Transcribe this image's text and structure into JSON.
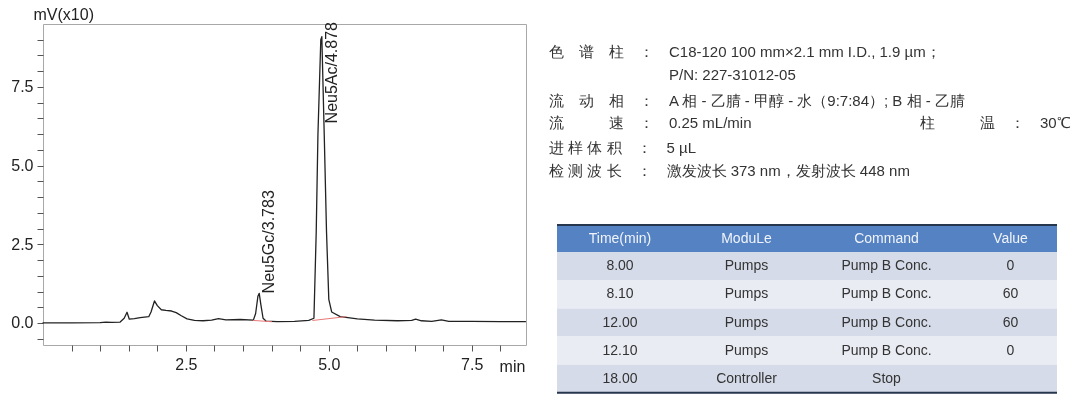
{
  "chart_data": [
    {
      "type": "line",
      "xlabel": "min",
      "ylabel": "mV(x10)",
      "xlim": [
        0,
        8.45
      ],
      "ylim": [
        -0.7,
        9.5
      ],
      "xticks": [
        {
          "value": 0.5,
          "label": null
        },
        {
          "value": 1,
          "label": null
        },
        {
          "value": 1.5,
          "label": null
        },
        {
          "value": 2,
          "label": null
        },
        2.5,
        {
          "value": 3,
          "label": null
        },
        {
          "value": 3.5,
          "label": null
        },
        {
          "value": 4,
          "label": null
        },
        {
          "value": 4.5,
          "label": null
        },
        {
          "value": 5,
          "label": "5.0"
        },
        {
          "value": 5.5,
          "label": null
        },
        {
          "value": 6,
          "label": null
        },
        {
          "value": 6.5,
          "label": null
        },
        {
          "value": 7,
          "label": null
        },
        7.5,
        {
          "value": 8,
          "label": null
        }
      ],
      "yticks": [
        {
          "value": -0.5,
          "label": null
        },
        {
          "value": 0,
          "label": "0.0"
        },
        {
          "value": 0.5,
          "label": null
        },
        {
          "value": 1,
          "label": null
        },
        {
          "value": 1.5,
          "label": null
        },
        {
          "value": 2,
          "label": null
        },
        2.5,
        {
          "value": 3,
          "label": null
        },
        {
          "value": 3.5,
          "label": null
        },
        {
          "value": 4,
          "label": null
        },
        {
          "value": 4.5,
          "label": null
        },
        {
          "value": 5,
          "label": "5.0"
        },
        {
          "value": 5.5,
          "label": null
        },
        {
          "value": 6,
          "label": null
        },
        {
          "value": 6.5,
          "label": null
        },
        {
          "value": 7,
          "label": null
        },
        7.5,
        {
          "value": 8,
          "label": null
        },
        {
          "value": 8.5,
          "label": null
        },
        {
          "value": 9,
          "label": null
        }
      ],
      "series": [
        {
          "color": "#222222",
          "x": [
            0,
            0.5,
            1.0,
            1.1,
            1.2,
            1.35,
            1.42,
            1.47,
            1.51,
            1.6,
            1.7,
            1.85,
            1.89,
            1.95,
            2.0,
            2.07,
            2.15,
            2.25,
            2.33,
            2.42,
            2.52,
            2.65,
            2.8,
            2.95,
            3.07,
            3.2,
            3.45,
            3.68,
            3.72,
            3.76,
            3.783,
            3.81,
            3.85,
            3.9,
            4.1,
            4.4,
            4.65,
            4.74,
            4.78,
            4.81,
            4.86,
            4.878,
            4.92,
            4.96,
            5.0,
            5.05,
            5.2,
            5.5,
            5.8,
            6.2,
            6.45,
            6.52,
            6.62,
            6.8,
            6.97,
            7.1,
            7.5,
            8.0,
            8.44
          ],
          "values": [
            0,
            0,
            0.01,
            0.03,
            0.02,
            0.03,
            0.15,
            0.34,
            0.12,
            0.14,
            0.17,
            0.2,
            0.35,
            0.7,
            0.55,
            0.42,
            0.4,
            0.38,
            0.33,
            0.23,
            0.13,
            0.08,
            0.07,
            0.09,
            0.14,
            0.1,
            0.11,
            0.09,
            0.3,
            0.85,
            0.94,
            0.6,
            0.15,
            0.06,
            0.04,
            0.05,
            0.08,
            0.15,
            2.9,
            6.0,
            9.0,
            9.1,
            6.0,
            2.9,
            0.75,
            0.35,
            0.2,
            0.13,
            0.09,
            0.07,
            0.08,
            0.12,
            0.07,
            0.05,
            0.1,
            0.05,
            0.05,
            0.04,
            0.04
          ]
        },
        {
          "color": "#e87878",
          "x": [
            3.68,
            4.0
          ],
          "values": [
            0.08,
            0.04
          ]
        },
        {
          "color": "#e87878",
          "x": [
            4.72,
            5.3
          ],
          "values": [
            0.08,
            0.2
          ]
        }
      ],
      "annotations": [
        {
          "text": "Neu5Gc/3.783",
          "x": 3.783,
          "y": 0.94
        },
        {
          "text": "Neu5Ac/4.878",
          "x": 4.878,
          "y": 9.1
        }
      ]
    },
    {
      "type": "other",
      "annotations": [
        "色　谱　柱　：　C18-120 100 mm×2.1 mm I.D., 1.9 µm；",
        "P/N: 227-31012-05",
        "流　动　相　：　A 相 - 乙腈 - 甲醇 - 水（9:7:84）; B 相 - 乙腈",
        "流　　　速　：　0.25 mL/min",
        "柱　　　温　：　30℃",
        "进 样 体 积　：　5 µL",
        "检 测 波 长　：　激发波长 373 nm，发射波长 448 nm"
      ]
    },
    {
      "type": "other",
      "categories": [
        "Time(min)",
        "ModuLe",
        "Command",
        "Value"
      ],
      "cell_labels": [
        [
          "8.00",
          "Pumps",
          "Pump B Conc.",
          "0"
        ],
        [
          "8.10",
          "Pumps",
          "Pump B Conc.",
          "60"
        ],
        [
          "12.00",
          "Pumps",
          "Pump B Conc.",
          "60"
        ],
        [
          "12.10",
          "Pumps",
          "Pump B Conc.",
          "0"
        ],
        [
          "18.00",
          "Controller",
          "Stop",
          null
        ]
      ],
      "colors": [
        "#5582c2",
        "#d5dbe8",
        "#e9ecf3",
        "#d5dbe8",
        "#e9ecf3",
        "#d5dbe8"
      ]
    }
  ]
}
